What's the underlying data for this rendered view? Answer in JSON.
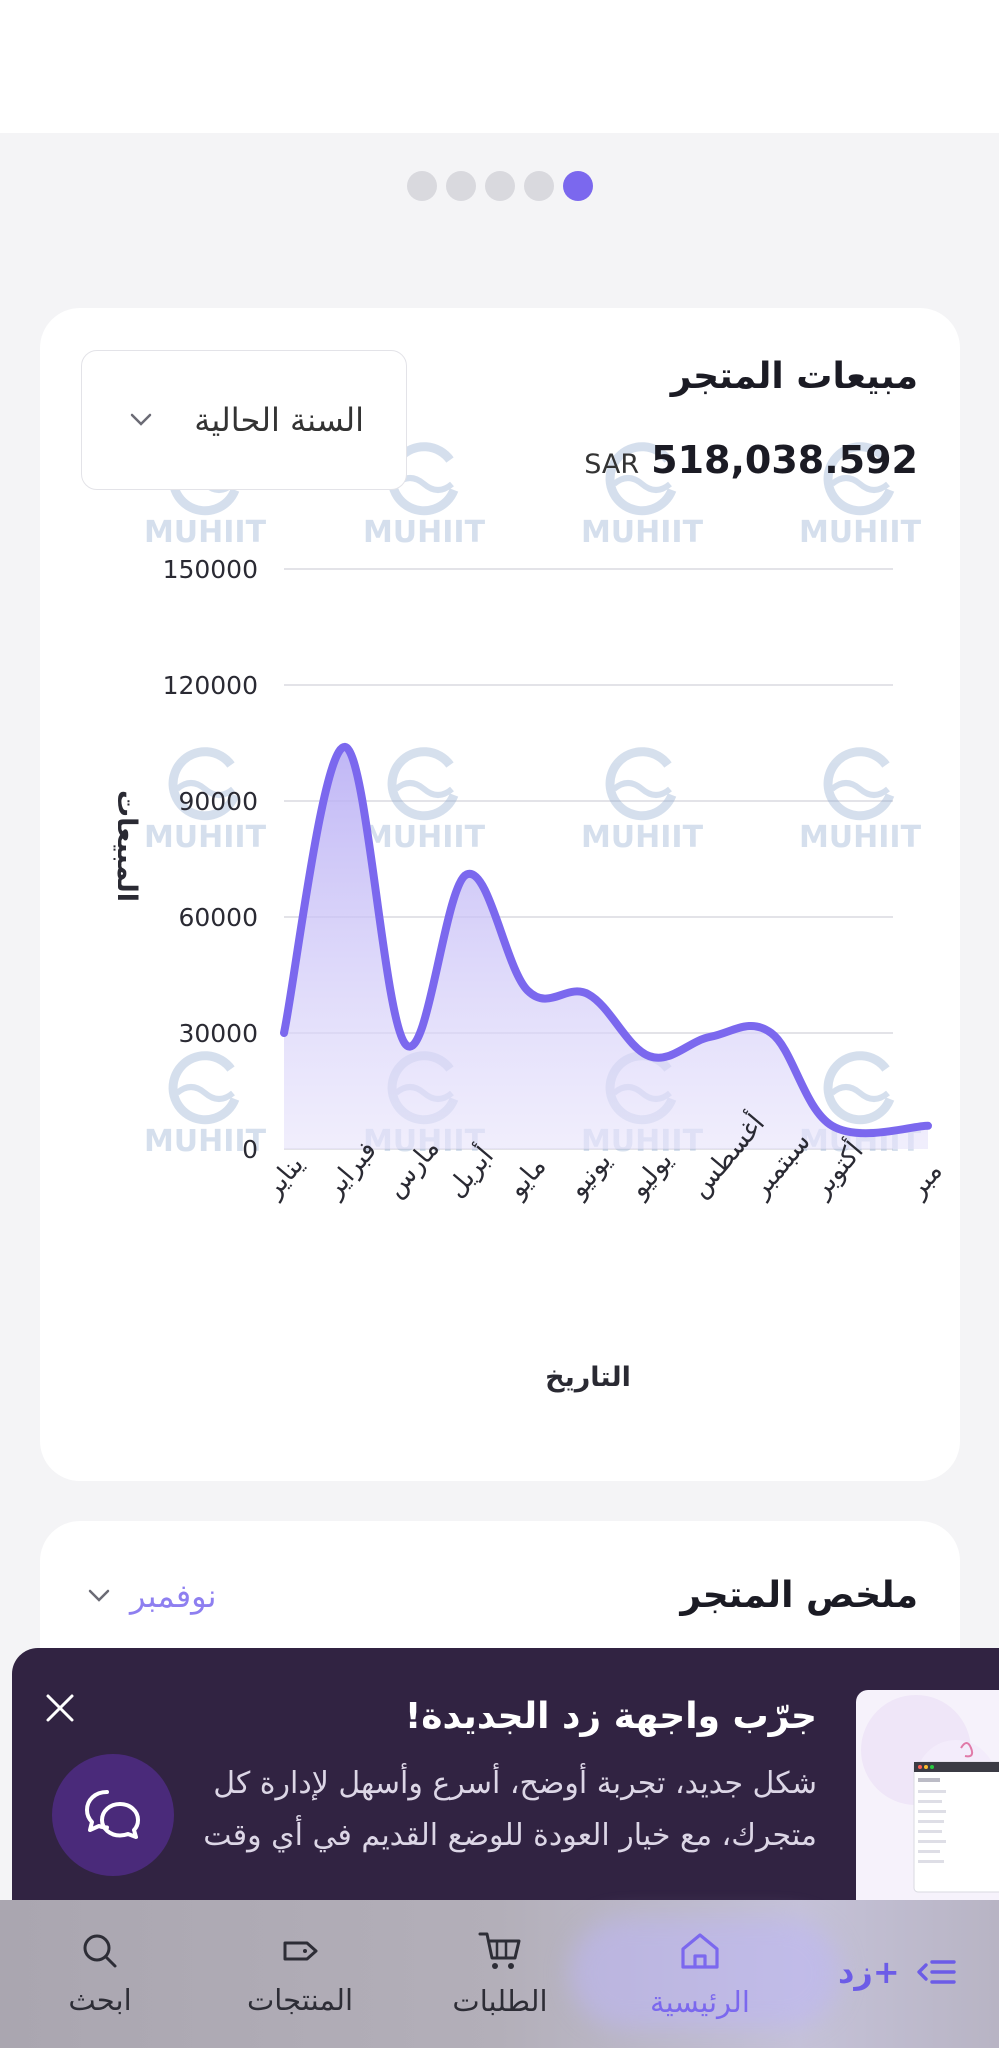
{
  "pagination": {
    "count": 5,
    "active_index": 4
  },
  "sales_card": {
    "title": "مبيعات المتجر",
    "total": "518,038.592",
    "currency": "SAR",
    "period_dropdown": "السنة الحالية"
  },
  "chart_data": {
    "type": "area",
    "xlabel": "التاريخ",
    "ylabel": "المبيعات",
    "ylim": [
      0,
      150000
    ],
    "yticks": [
      "150000",
      "120000",
      "90000",
      "60000",
      "30000",
      "0"
    ],
    "categories": [
      "يناير",
      "فبراير",
      "مارس",
      "أبريل",
      "مايو",
      "يونيو",
      "يوليو",
      "أغسطس",
      "سبتمبر",
      "أكتوبر",
      "مبر"
    ],
    "values": [
      30000,
      104000,
      27000,
      71000,
      41000,
      40000,
      24000,
      29000,
      30000,
      6000,
      6000
    ],
    "series_color": "#7b68ee",
    "grid": true,
    "smooth": true
  },
  "summary_card": {
    "title": "ملخص المتجر",
    "month": "نوفمبر"
  },
  "banner": {
    "title": "جرّب واجهة زد الجديدة!",
    "line1": "شكل جديد، تجربة أوضح، أسرع وأسهل لإدارة كل",
    "line2": "متجرك، مع خيار العودة للوضع القديم في أي وقت"
  },
  "bottom_nav": {
    "home": "الرئيسية",
    "orders": "الطلبات",
    "products": "المنتجات",
    "search": "ابحث",
    "brand": "زد+"
  },
  "watermark": "MUHIIT",
  "colors": {
    "accent": "#7b68ee",
    "banner_bg": "#312342",
    "fab_bg": "#4a2a7a"
  }
}
